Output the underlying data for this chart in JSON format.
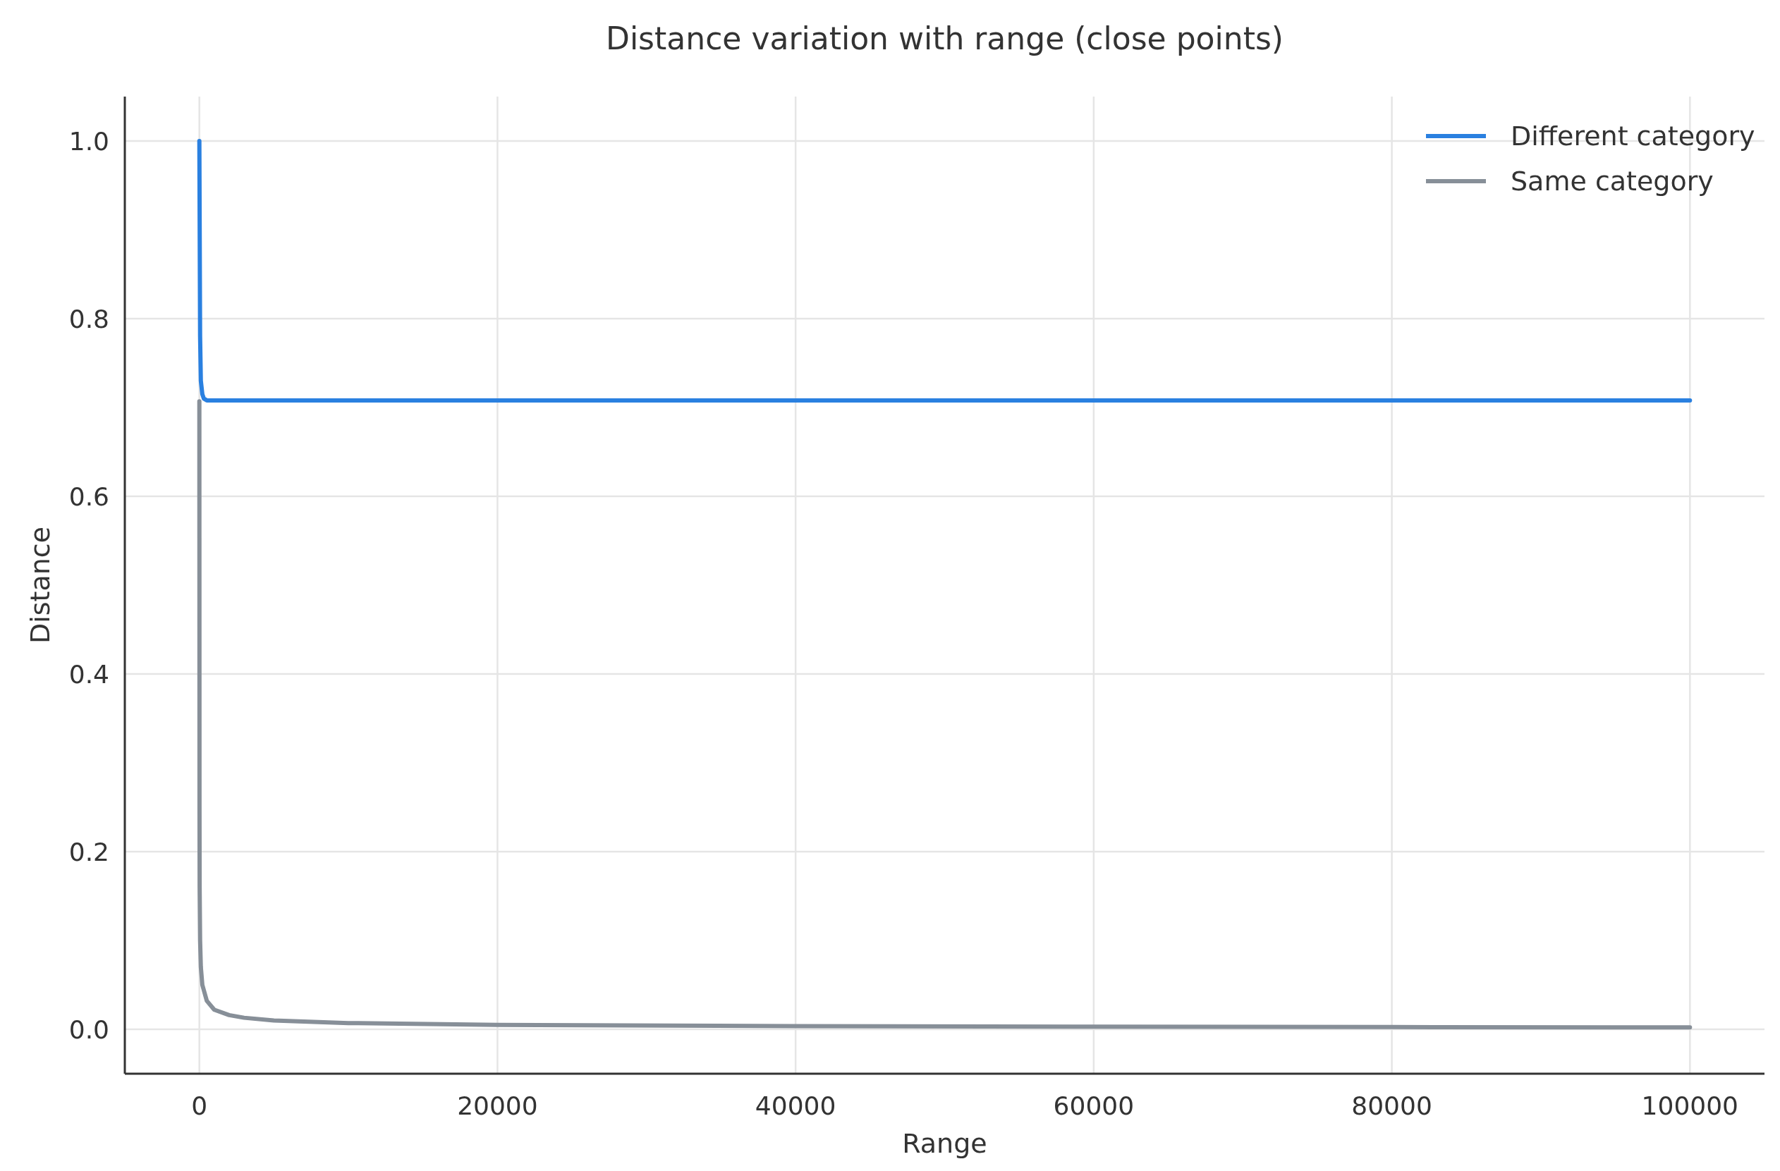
{
  "chart_data": {
    "type": "line",
    "title": "Distance variation with range (close points)",
    "xlabel": "Range",
    "ylabel": "Distance",
    "xlim": [
      -5000,
      105000
    ],
    "xticks": [
      0,
      20000,
      40000,
      60000,
      80000,
      100000
    ],
    "ylim": [
      -0.05,
      1.05
    ],
    "yticks": [
      {
        "value": 0,
        "label": "0.0"
      },
      {
        "value": 0.2,
        "label": "0.2"
      },
      {
        "value": 0.4,
        "label": "0.4"
      },
      {
        "value": 0.6,
        "label": "0.6"
      },
      {
        "value": 0.8,
        "label": "0.8"
      },
      {
        "value": 1,
        "label": "1.0"
      }
    ],
    "grid": true,
    "legend": "top right",
    "line_style": "solid",
    "marker": "none",
    "series": [
      {
        "name": "Different category",
        "color": "#2a80e0",
        "x": [
          0,
          50,
          100,
          200,
          300,
          500,
          1000,
          5000,
          20000,
          50000,
          100000
        ],
        "values": [
          1.0,
          0.78,
          0.73,
          0.715,
          0.71,
          0.708,
          0.708,
          0.708,
          0.708,
          0.708,
          0.708
        ]
      },
      {
        "name": "Same category",
        "color": "#878f98",
        "x": [
          0,
          10,
          20,
          50,
          100,
          200,
          500,
          1000,
          2000,
          3000,
          5000,
          10000,
          20000,
          40000,
          60000,
          80000,
          100000
        ],
        "values": [
          0.707,
          0.25,
          0.16,
          0.1,
          0.07,
          0.05,
          0.032,
          0.022,
          0.016,
          0.013,
          0.01,
          0.007,
          0.005,
          0.0035,
          0.003,
          0.0025,
          0.0022
        ]
      }
    ]
  }
}
